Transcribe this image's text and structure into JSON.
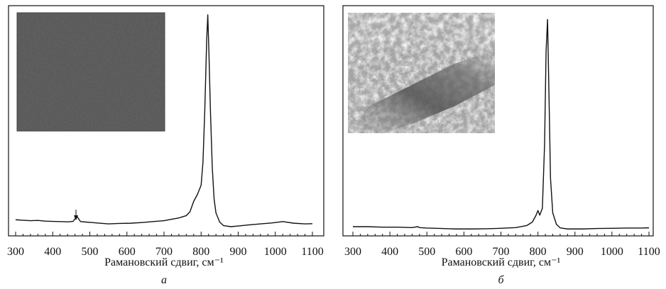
{
  "chart_data": [
    {
      "type": "line",
      "x_label": "Рамановский сдвиг, см⁻¹",
      "panel_label": "а",
      "xlim": [
        300,
        1100
      ],
      "xticks": [
        300,
        400,
        500,
        600,
        700,
        800,
        900,
        1000,
        1100
      ],
      "ylim": [
        0,
        100
      ],
      "color": "#111111",
      "x": [
        300,
        320,
        340,
        360,
        380,
        400,
        420,
        440,
        455,
        465,
        475,
        490,
        520,
        550,
        580,
        610,
        640,
        670,
        700,
        720,
        740,
        760,
        770,
        780,
        790,
        800,
        805,
        810,
        815,
        818,
        821,
        825,
        830,
        835,
        840,
        850,
        860,
        880,
        900,
        930,
        960,
        990,
        1020,
        1050,
        1080,
        1100
      ],
      "values": [
        7,
        6.8,
        6.6,
        6.7,
        6.4,
        6.3,
        6.2,
        6.1,
        6.3,
        8.5,
        6.2,
        6,
        5.6,
        5.2,
        5.4,
        5.5,
        5.8,
        6.2,
        6.6,
        7.2,
        7.8,
        8.8,
        10.5,
        15,
        18,
        22,
        32,
        55,
        85,
        96,
        80,
        55,
        30,
        16,
        10,
        6,
        4.5,
        4,
        4.3,
        4.8,
        5.2,
        5.6,
        6.2,
        5.5,
        5.2,
        5.3
      ]
    },
    {
      "type": "line",
      "x_label": "Рамановский сдвиг, см⁻¹",
      "panel_label": "б",
      "xlim": [
        300,
        1100
      ],
      "xticks": [
        300,
        400,
        500,
        600,
        700,
        800,
        900,
        1000,
        1100
      ],
      "ylim": [
        0,
        100
      ],
      "color": "#111111",
      "x": [
        300,
        340,
        380,
        420,
        460,
        475,
        480,
        500,
        540,
        580,
        620,
        660,
        700,
        740,
        770,
        785,
        795,
        800,
        805,
        812,
        818,
        822,
        826,
        830,
        834,
        840,
        850,
        860,
        880,
        920,
        960,
        1000,
        1040,
        1080,
        1100
      ],
      "values": [
        4,
        4,
        3.8,
        3.8,
        3.6,
        4,
        3.6,
        3.4,
        3.2,
        3,
        3,
        3.1,
        3.3,
        3.6,
        4.5,
        6,
        9,
        11,
        9,
        12,
        40,
        80,
        94,
        60,
        25,
        10,
        5,
        3.5,
        3,
        3,
        3.2,
        3.3,
        3.4,
        3.4,
        3.5
      ]
    }
  ]
}
